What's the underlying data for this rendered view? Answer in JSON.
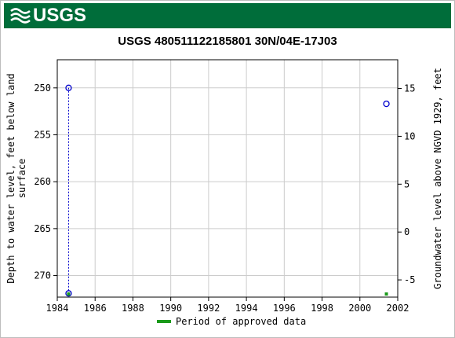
{
  "header": {
    "logo_text": "USGS",
    "brand_color": "#006d3a"
  },
  "chart_data": {
    "type": "scatter",
    "title": "USGS 480511122185801 30N/04E-17J03",
    "ylabel_left": "Depth to water level, feet below land surface",
    "ylabel_right": "Groundwater level above NGVD 1929, feet",
    "xlim": [
      1984,
      2002
    ],
    "ylim_left": [
      247.0,
      272.3
    ],
    "ylim_right": [
      -6.8,
      18.0
    ],
    "y_left_inverted": true,
    "x_ticks": [
      "1984",
      "1986",
      "1988",
      "1990",
      "1992",
      "1994",
      "1996",
      "1998",
      "2000",
      "2002"
    ],
    "y_left_ticks": [
      "250",
      "255",
      "260",
      "265",
      "270"
    ],
    "y_right_ticks": [
      "15",
      "10",
      "5",
      "0",
      "-5"
    ],
    "grid": true,
    "series": [
      {
        "values": [
          {
            "x": 1984.6,
            "y": 250.0
          },
          {
            "x": 1984.6,
            "y": 271.9
          },
          {
            "x": 2001.4,
            "y": 251.7
          }
        ],
        "color": "#0000cc",
        "marker": "circle-open"
      }
    ],
    "approved_periods": [
      {
        "x": 1984.6
      },
      {
        "x": 2001.4
      }
    ],
    "legend": {
      "label": "Period of approved data",
      "color": "#1a9a1a",
      "placement": "bottom-center"
    }
  }
}
